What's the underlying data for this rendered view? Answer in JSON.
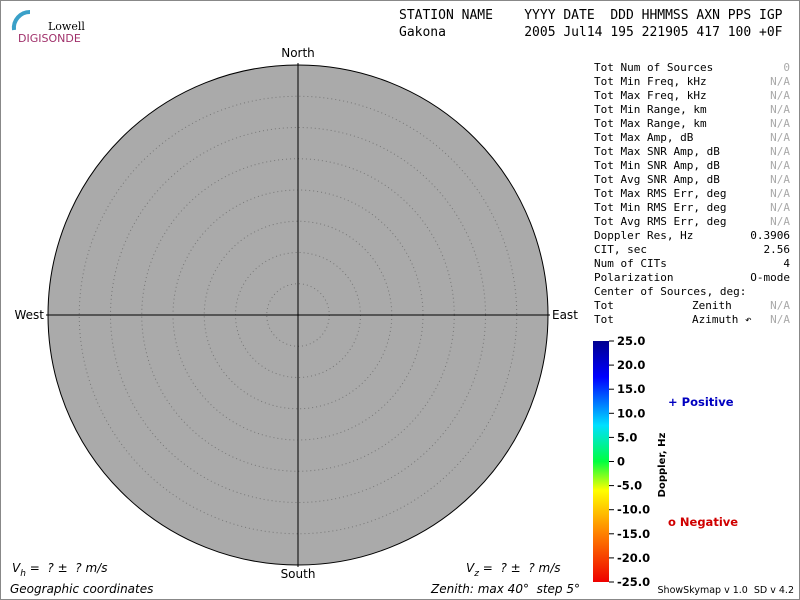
{
  "logo": {
    "top": "Lowell",
    "bottom": "DIGISONDE"
  },
  "header": {
    "columns": "STATION NAME    YYYY DATE  DDD HHMMSS AXN PPS IGP",
    "values": "Gakona          2005 Jul14 195 221905 417 100 +0F"
  },
  "plot": {
    "north": "North",
    "south": "South",
    "west": "West",
    "east": "East"
  },
  "stats": [
    {
      "label": "Tot Num of Sources",
      "value": 0
    },
    {
      "label": "Tot Min Freq, kHz",
      "value": "N/A"
    },
    {
      "label": "Tot Max Freq, kHz",
      "value": "N/A"
    },
    {
      "label": "Tot Min Range, km",
      "value": "N/A"
    },
    {
      "label": "Tot Max Range, km",
      "value": "N/A"
    },
    {
      "label": "Tot Max Amp, dB",
      "value": "N/A"
    },
    {
      "label": "Tot Max SNR Amp, dB",
      "value": "N/A"
    },
    {
      "label": "Tot Min SNR Amp, dB",
      "value": "N/A"
    },
    {
      "label": "Tot Avg SNR Amp, dB",
      "value": "N/A"
    },
    {
      "label": "Tot Max RMS Err, deg",
      "value": "N/A"
    },
    {
      "label": "Tot Min RMS Err, deg",
      "value": "N/A"
    },
    {
      "label": "Tot Avg RMS Err, deg",
      "value": "N/A"
    },
    {
      "label": "Doppler Res, Hz",
      "value": 0.3906
    },
    {
      "label": "CIT, sec",
      "value": 2.56
    },
    {
      "label": "Num of CITs",
      "value": 4
    },
    {
      "label": "Polarization",
      "value": "O-mode"
    }
  ],
  "center": {
    "title": "Center of Sources, deg:",
    "rows": [
      {
        "label": "Tot",
        "sub": "Zenith",
        "value": "N/A"
      },
      {
        "label": "Tot",
        "sub": "Azimuth ↶",
        "value": "N/A"
      }
    ]
  },
  "colorbar": {
    "label": "Doppler, Hz",
    "lim": [
      -25,
      25
    ],
    "ticks": [
      {
        "value": 25,
        "label": "25.0"
      },
      {
        "value": 20,
        "label": "20.0"
      },
      {
        "value": 15,
        "label": "15.0"
      },
      {
        "value": 10,
        "label": "10.0"
      },
      {
        "value": 5,
        "label": "5.0"
      },
      {
        "value": 0,
        "label": "0"
      },
      {
        "value": -5,
        "label": "-5.0"
      },
      {
        "value": -10,
        "label": "-10.0"
      },
      {
        "value": -15,
        "label": "-15.0"
      },
      {
        "value": -20,
        "label": "-20.0"
      },
      {
        "value": -25,
        "label": "-25.0"
      }
    ]
  },
  "legend": {
    "positive": "+ Positive",
    "negative": "o Negative"
  },
  "footer": {
    "vh": {
      "symbol": "V",
      "sub": "h",
      "rest": " =  ? ±  ? m/s"
    },
    "vz": {
      "symbol": "V",
      "sub": "z",
      "rest": " =  ? ±  ? m/s"
    },
    "coords": "Geographic coordinates",
    "zenith": "Zenith: max 40°  step 5°",
    "version": "ShowSkymap v 1.0  SD v 4.2"
  }
}
